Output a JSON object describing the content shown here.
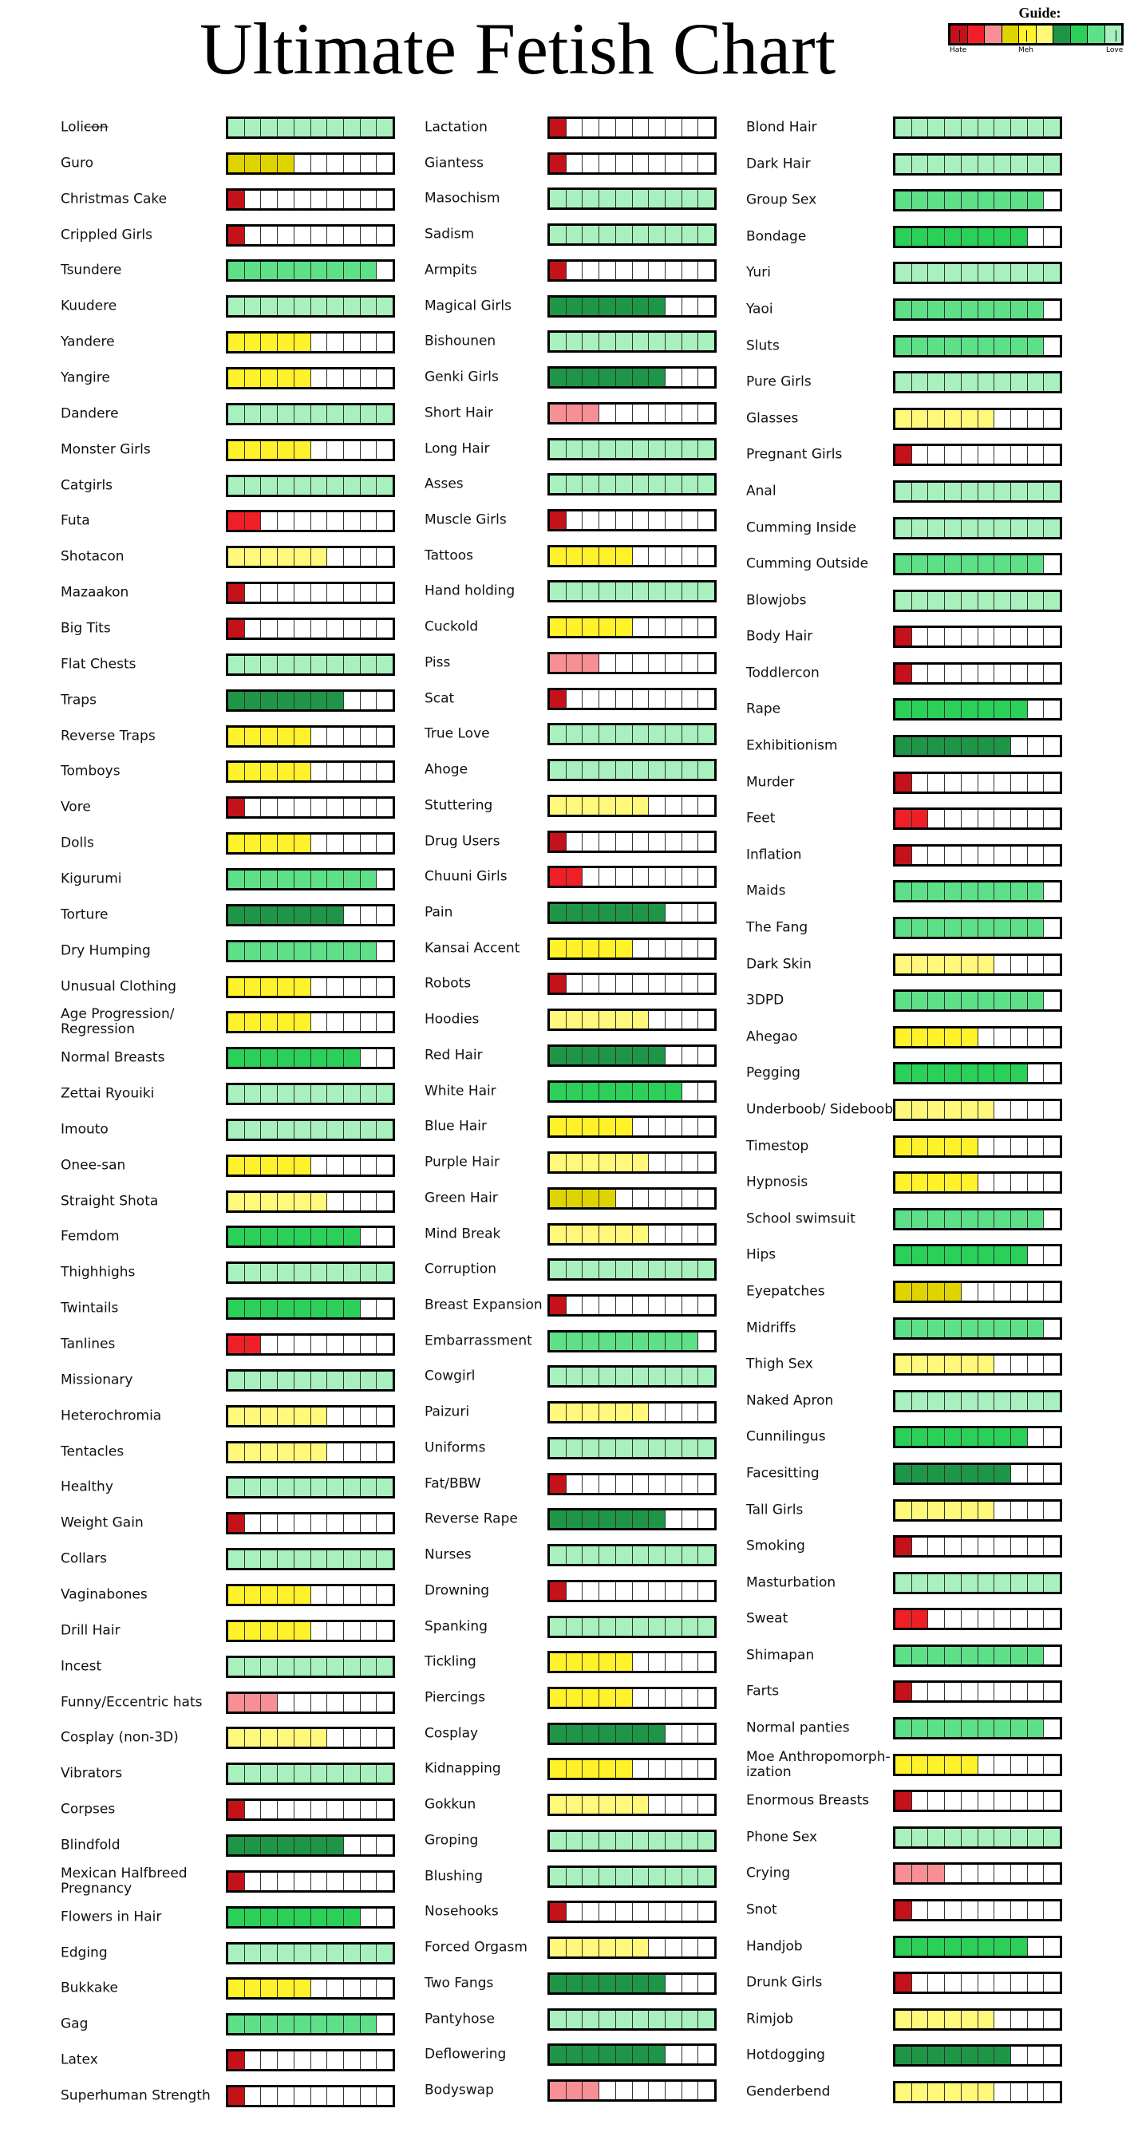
{
  "title": "Ultimate Fetish Chart",
  "guide": {
    "title": "Guide:",
    "labels": [
      "Hate",
      "Meh",
      "Love"
    ],
    "colors": [
      "#c4121a",
      "#ee1f27",
      "#f78f95",
      "#e0d400",
      "#fff22a",
      "#fff87a",
      "#1f9647",
      "#2ad058",
      "#5ee089",
      "#a9f0bf"
    ]
  },
  "chart_data": {
    "type": "table",
    "title": "Ultimate Fetish Chart",
    "scale": {
      "min": 1,
      "max": 10,
      "labels": {
        "1": "Hate",
        "5": "Meh",
        "10": "Love"
      }
    },
    "columns": [
      [
        {
          "label": "Loli",
          "struck": "con",
          "rating": 10
        },
        {
          "label": "Guro",
          "rating": 4
        },
        {
          "label": "Christmas Cake",
          "rating": 1
        },
        {
          "label": "Crippled Girls",
          "rating": 1
        },
        {
          "label": "Tsundere",
          "rating": 9
        },
        {
          "label": "Kuudere",
          "rating": 10
        },
        {
          "label": "Yandere",
          "rating": 5
        },
        {
          "label": "Yangire",
          "rating": 5
        },
        {
          "label": "Dandere",
          "rating": 10
        },
        {
          "label": "Monster Girls",
          "rating": 5
        },
        {
          "label": "Catgirls",
          "rating": 10
        },
        {
          "label": "Futa",
          "rating": 2
        },
        {
          "label": "Shotacon",
          "rating": 6
        },
        {
          "label": "Mazaakon",
          "rating": 1
        },
        {
          "label": "Big Tits",
          "rating": 1
        },
        {
          "label": "Flat Chests",
          "rating": 10
        },
        {
          "label": "Traps",
          "rating": 7
        },
        {
          "label": "Reverse Traps",
          "rating": 5
        },
        {
          "label": "Tomboys",
          "rating": 5
        },
        {
          "label": "Vore",
          "rating": 1
        },
        {
          "label": "Dolls",
          "rating": 5
        },
        {
          "label": "Kigurumi",
          "rating": 9
        },
        {
          "label": "Torture",
          "rating": 7
        },
        {
          "label": "Dry Humping",
          "rating": 9
        },
        {
          "label": "Unusual Clothing",
          "rating": 5
        },
        {
          "label": "Age Progression/ Regression",
          "rating": 5
        },
        {
          "label": "Normal Breasts",
          "rating": 8
        },
        {
          "label": "Zettai Ryouiki",
          "rating": 10
        },
        {
          "label": "Imouto",
          "rating": 10
        },
        {
          "label": "Onee-san",
          "rating": 5
        },
        {
          "label": "Straight Shota",
          "rating": 6
        },
        {
          "label": "Femdom",
          "rating": 8
        },
        {
          "label": "Thighhighs",
          "rating": 10
        },
        {
          "label": "Twintails",
          "rating": 8
        },
        {
          "label": "Tanlines",
          "rating": 2
        },
        {
          "label": "Missionary",
          "rating": 10
        },
        {
          "label": "Heterochromia",
          "rating": 6
        },
        {
          "label": "Tentacles",
          "rating": 6
        },
        {
          "label": "Healthy",
          "rating": 10
        },
        {
          "label": "Weight Gain",
          "rating": 1
        },
        {
          "label": "Collars",
          "rating": 10
        },
        {
          "label": "Vaginabones",
          "rating": 5
        },
        {
          "label": "Drill Hair",
          "rating": 5
        },
        {
          "label": "Incest",
          "rating": 10
        },
        {
          "label": "Funny/Eccentric hats",
          "rating": 3
        },
        {
          "label": "Cosplay (non-3D)",
          "rating": 6
        },
        {
          "label": "Vibrators",
          "rating": 10
        },
        {
          "label": "Corpses",
          "rating": 1
        },
        {
          "label": "Blindfold",
          "rating": 7
        },
        {
          "label": "Mexican Halfbreed Pregnancy",
          "rating": 1
        },
        {
          "label": "Flowers in Hair",
          "rating": 8
        },
        {
          "label": "Edging",
          "rating": 10
        },
        {
          "label": "Bukkake",
          "rating": 5
        },
        {
          "label": "Gag",
          "rating": 9
        },
        {
          "label": "Latex",
          "rating": 1
        },
        {
          "label": "Superhuman Strength",
          "rating": 1
        }
      ],
      [
        {
          "label": "Lactation",
          "rating": 1
        },
        {
          "label": "Giantess",
          "rating": 1
        },
        {
          "label": "Masochism",
          "rating": 10
        },
        {
          "label": "Sadism",
          "rating": 10
        },
        {
          "label": "Armpits",
          "rating": 1
        },
        {
          "label": "Magical Girls",
          "rating": 7
        },
        {
          "label": "Bishounen",
          "rating": 10
        },
        {
          "label": "Genki Girls",
          "rating": 7
        },
        {
          "label": "Short Hair",
          "rating": 3
        },
        {
          "label": "Long Hair",
          "rating": 10
        },
        {
          "label": "Asses",
          "rating": 10
        },
        {
          "label": "Muscle Girls",
          "rating": 1
        },
        {
          "label": "Tattoos",
          "rating": 5
        },
        {
          "label": "Hand holding",
          "rating": 10
        },
        {
          "label": "Cuckold",
          "rating": 5
        },
        {
          "label": "Piss",
          "rating": 3
        },
        {
          "label": "Scat",
          "rating": 1
        },
        {
          "label": "True Love",
          "rating": 10
        },
        {
          "label": "Ahoge",
          "rating": 10
        },
        {
          "label": "Stuttering",
          "rating": 6
        },
        {
          "label": "Drug Users",
          "rating": 1
        },
        {
          "label": "Chuuni Girls",
          "rating": 2
        },
        {
          "label": "Pain",
          "rating": 7
        },
        {
          "label": "Kansai Accent",
          "rating": 5
        },
        {
          "label": "Robots",
          "rating": 1
        },
        {
          "label": "Hoodies",
          "rating": 6
        },
        {
          "label": "Red Hair",
          "rating": 7
        },
        {
          "label": "White Hair",
          "rating": 8
        },
        {
          "label": "Blue Hair",
          "rating": 5
        },
        {
          "label": "Purple Hair",
          "rating": 6
        },
        {
          "label": "Green Hair",
          "rating": 4
        },
        {
          "label": "Mind Break",
          "rating": 6
        },
        {
          "label": "Corruption",
          "rating": 10
        },
        {
          "label": "Breast Expansion",
          "rating": 1
        },
        {
          "label": "Embarrassment",
          "rating": 9
        },
        {
          "label": "Cowgirl",
          "rating": 10
        },
        {
          "label": "Paizuri",
          "rating": 6
        },
        {
          "label": "Uniforms",
          "rating": 10
        },
        {
          "label": "Fat/BBW",
          "rating": 1
        },
        {
          "label": "Reverse Rape",
          "rating": 7
        },
        {
          "label": "Nurses",
          "rating": 10
        },
        {
          "label": "Drowning",
          "rating": 1
        },
        {
          "label": "Spanking",
          "rating": 10
        },
        {
          "label": "Tickling",
          "rating": 5
        },
        {
          "label": "Piercings",
          "rating": 5
        },
        {
          "label": "Cosplay",
          "rating": 7
        },
        {
          "label": "Kidnapping",
          "rating": 5
        },
        {
          "label": "Gokkun",
          "rating": 6
        },
        {
          "label": "Groping",
          "rating": 10
        },
        {
          "label": "Blushing",
          "rating": 10
        },
        {
          "label": "Nosehooks",
          "rating": 1
        },
        {
          "label": "Forced Orgasm",
          "rating": 6
        },
        {
          "label": "Two Fangs",
          "rating": 7
        },
        {
          "label": "Pantyhose",
          "rating": 10
        },
        {
          "label": "Deflowering",
          "rating": 7
        },
        {
          "label": "Bodyswap",
          "rating": 3
        }
      ],
      [
        {
          "label": "Blond Hair",
          "rating": 10
        },
        {
          "label": "Dark Hair",
          "rating": 10
        },
        {
          "label": "Group Sex",
          "rating": 9
        },
        {
          "label": "Bondage",
          "rating": 8
        },
        {
          "label": "Yuri",
          "rating": 10
        },
        {
          "label": "Yaoi",
          "rating": 9
        },
        {
          "label": "Sluts",
          "rating": 9
        },
        {
          "label": "Pure Girls",
          "rating": 10
        },
        {
          "label": "Glasses",
          "rating": 6
        },
        {
          "label": "Pregnant Girls",
          "rating": 1
        },
        {
          "label": "Anal",
          "rating": 10
        },
        {
          "label": "Cumming Inside",
          "rating": 10
        },
        {
          "label": "Cumming Outside",
          "rating": 9
        },
        {
          "label": "Blowjobs",
          "rating": 10
        },
        {
          "label": "Body Hair",
          "rating": 1
        },
        {
          "label": "Toddlercon",
          "rating": 1
        },
        {
          "label": "Rape",
          "rating": 8
        },
        {
          "label": "Exhibitionism",
          "rating": 7
        },
        {
          "label": "Murder",
          "rating": 1
        },
        {
          "label": "Feet",
          "rating": 2
        },
        {
          "label": "Inflation",
          "rating": 1
        },
        {
          "label": "Maids",
          "rating": 9
        },
        {
          "label": "The Fang",
          "rating": 9
        },
        {
          "label": "Dark Skin",
          "rating": 6
        },
        {
          "label": "3DPD",
          "rating": 9
        },
        {
          "label": "Ahegao",
          "rating": 5
        },
        {
          "label": "Pegging",
          "rating": 8
        },
        {
          "label": "Underboob/ Sideboob",
          "rating": 6
        },
        {
          "label": "Timestop",
          "rating": 5
        },
        {
          "label": "Hypnosis",
          "rating": 5
        },
        {
          "label": "School swimsuit",
          "rating": 9
        },
        {
          "label": "Hips",
          "rating": 8
        },
        {
          "label": "Eyepatches",
          "rating": 4
        },
        {
          "label": "Midriffs",
          "rating": 9
        },
        {
          "label": "Thigh Sex",
          "rating": 6
        },
        {
          "label": "Naked Apron",
          "rating": 10
        },
        {
          "label": "Cunnilingus",
          "rating": 8
        },
        {
          "label": "Facesitting",
          "rating": 7
        },
        {
          "label": "Tall Girls",
          "rating": 6
        },
        {
          "label": "Smoking",
          "rating": 1
        },
        {
          "label": "Masturbation",
          "rating": 10
        },
        {
          "label": "Sweat",
          "rating": 2
        },
        {
          "label": "Shimapan",
          "rating": 9
        },
        {
          "label": "Farts",
          "rating": 1
        },
        {
          "label": "Normal panties",
          "rating": 9
        },
        {
          "label": "Moe Anthropomorph-ization",
          "rating": 5
        },
        {
          "label": "Enormous Breasts",
          "rating": 1
        },
        {
          "label": "Phone Sex",
          "rating": 10
        },
        {
          "label": "Crying",
          "rating": 3
        },
        {
          "label": "Snot",
          "rating": 1
        },
        {
          "label": "Handjob",
          "rating": 8
        },
        {
          "label": "Drunk Girls",
          "rating": 1
        },
        {
          "label": "Rimjob",
          "rating": 6
        },
        {
          "label": "Hotdogging",
          "rating": 7
        },
        {
          "label": "Genderbend",
          "rating": 6
        }
      ]
    ]
  }
}
